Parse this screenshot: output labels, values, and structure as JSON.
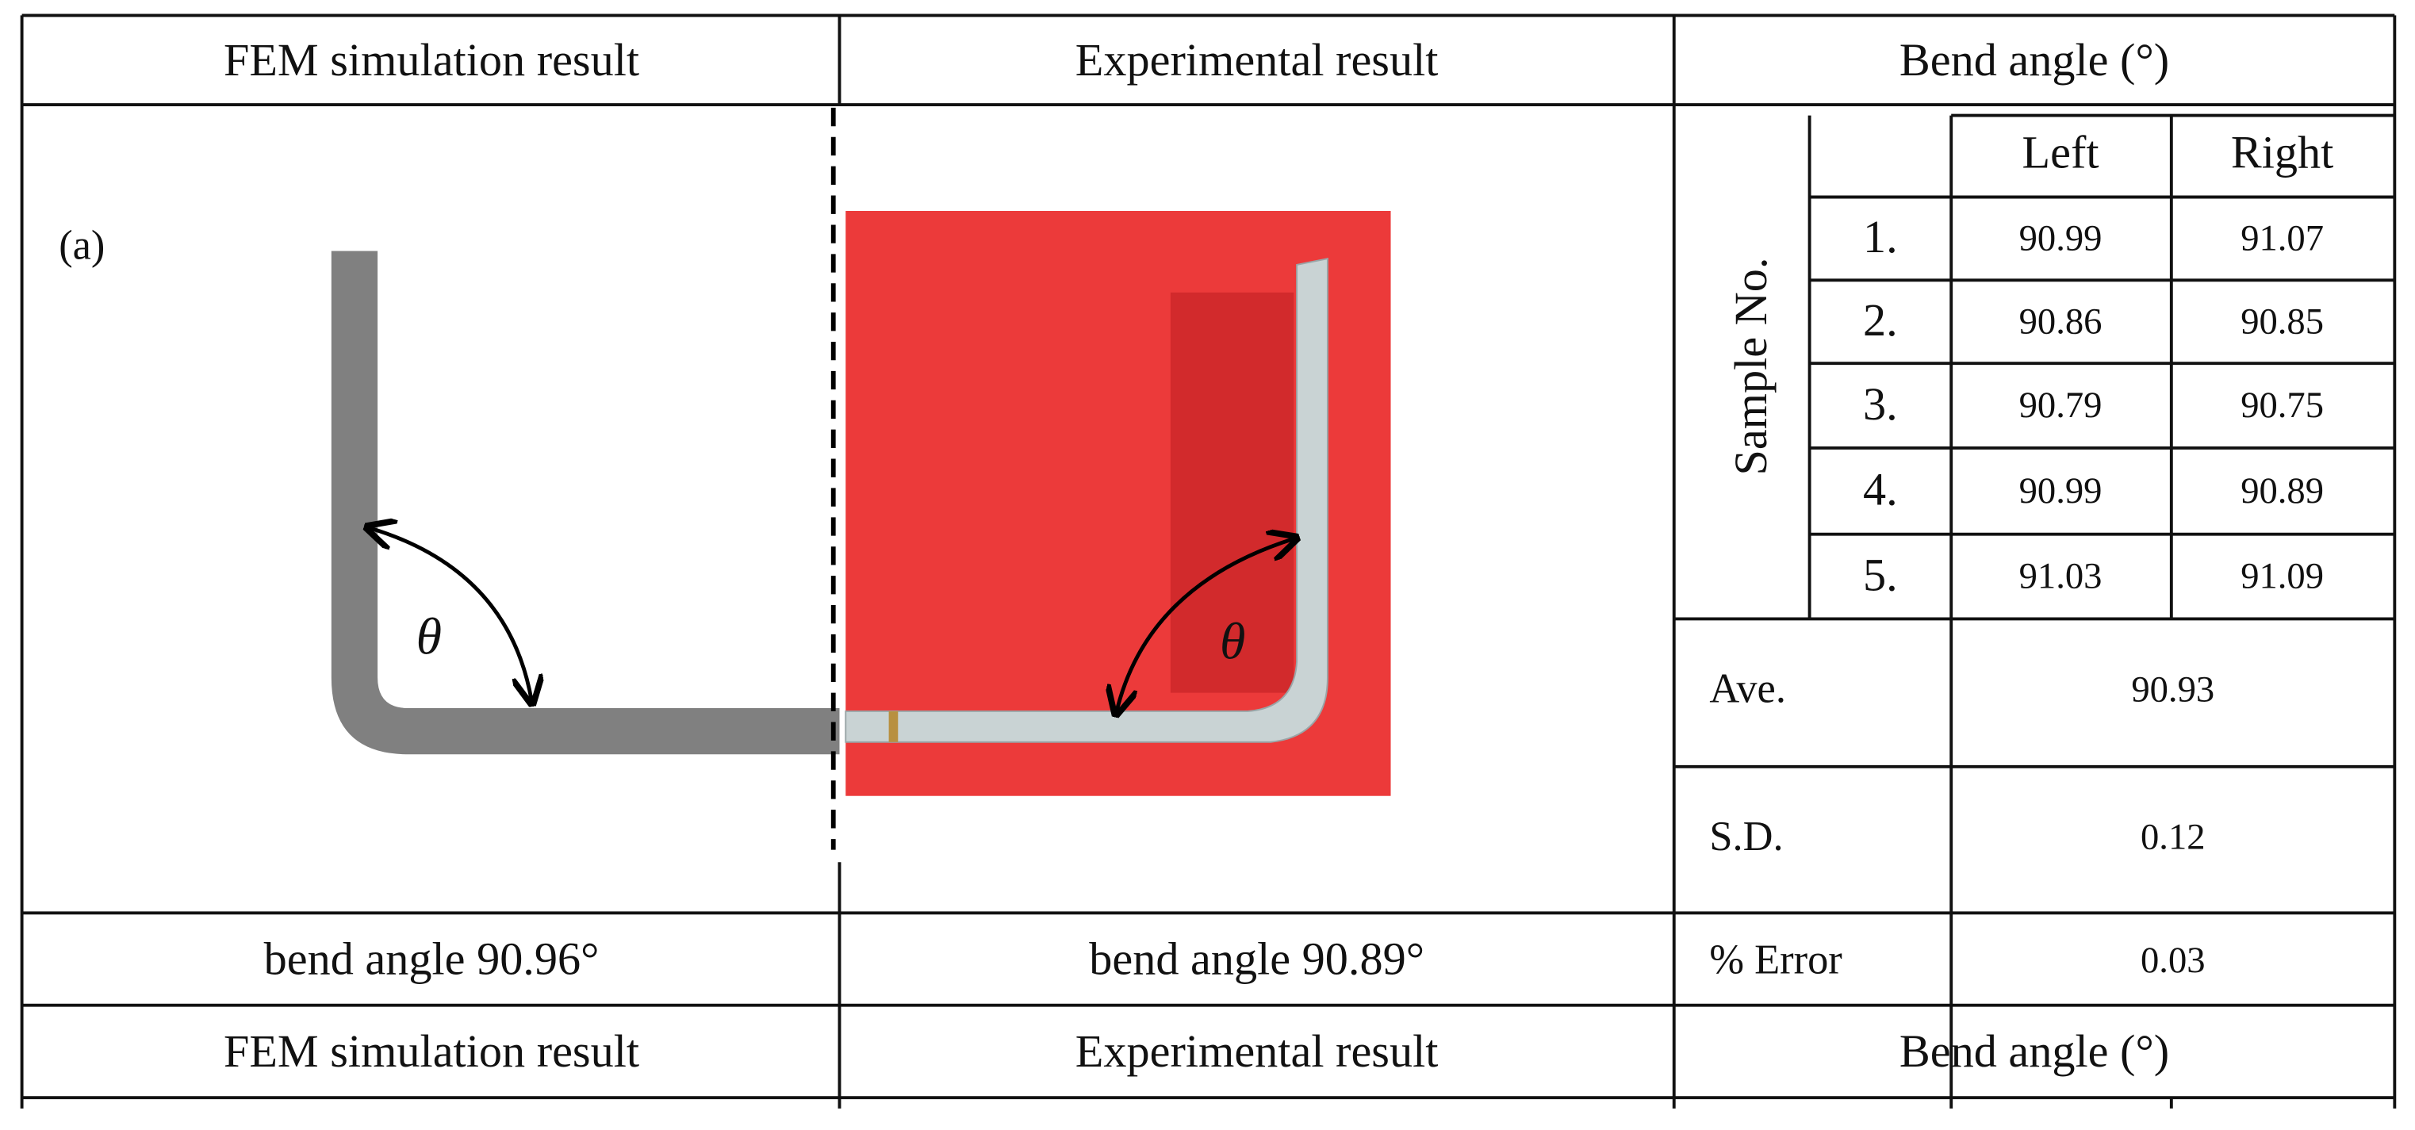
{
  "header": [
    "FEM simulation result",
    "Experimental result",
    "Bend angle (°)"
  ],
  "fem": {
    "label": "(a)",
    "angle_symbol": "θ",
    "caption": "bend angle 90.96°"
  },
  "experiment": {
    "angle_symbol": "θ",
    "caption": "bend angle 90.89°"
  },
  "bend_table": {
    "row_group_label": "Sample No.",
    "columns": [
      "Left",
      "Right"
    ],
    "rows": [
      [
        "1.",
        "90.99",
        "91.07"
      ],
      [
        "2.",
        "90.86",
        "90.85"
      ],
      [
        "3.",
        "90.79",
        "90.75"
      ],
      [
        "4.",
        "90.99",
        "90.89"
      ],
      [
        "5.",
        "91.03",
        "91.09"
      ]
    ],
    "summary": [
      [
        "Ave.",
        "90.93"
      ],
      [
        "S.D.",
        "0.12"
      ],
      [
        "% Error",
        "0.03"
      ]
    ]
  },
  "footer": [
    "FEM simulation result",
    "Experimental result",
    "Bend angle (°)"
  ]
}
